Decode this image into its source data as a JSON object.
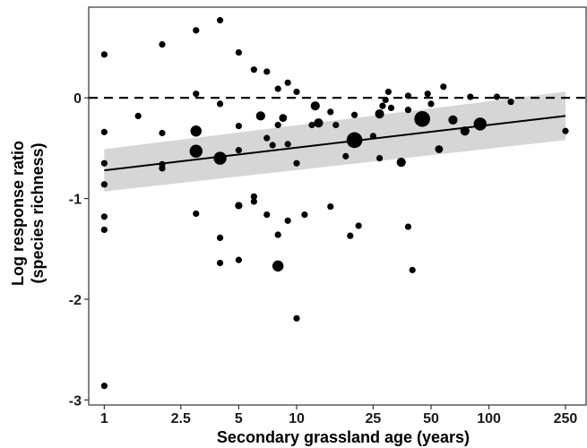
{
  "chart_data": {
    "type": "scatter",
    "title": "",
    "xlabel": "Secondary grassland age (years)",
    "ylabel_lines": [
      "Log response ratio",
      "(species richness)"
    ],
    "x_scale": "log",
    "xlim": [
      0.83,
      320
    ],
    "ylim": [
      -3.05,
      0.9
    ],
    "x_ticks": [
      1,
      2.5,
      5,
      10,
      25,
      50,
      100,
      250
    ],
    "x_tick_labels": [
      "1",
      "2.5",
      "5",
      "10",
      "25",
      "50",
      "100",
      "250"
    ],
    "y_ticks": [
      -3,
      -2,
      -1,
      0
    ],
    "y_tick_labels": [
      "-3",
      "-2",
      "-1",
      "0"
    ],
    "grid": false,
    "reference_line": {
      "y": 0,
      "style": "dashed"
    },
    "regression": {
      "x": [
        1,
        250
      ],
      "y": [
        -0.72,
        -0.18
      ],
      "ci_lower": [
        -0.93,
        -0.42
      ],
      "ci_upper": [
        -0.51,
        0.06
      ]
    },
    "points": [
      {
        "x": 1,
        "y": 0.43,
        "s": 1
      },
      {
        "x": 1,
        "y": -0.34,
        "s": 1
      },
      {
        "x": 1,
        "y": -0.65,
        "s": 1
      },
      {
        "x": 1,
        "y": -0.86,
        "s": 1
      },
      {
        "x": 1,
        "y": -1.18,
        "s": 1
      },
      {
        "x": 1,
        "y": -1.31,
        "s": 1
      },
      {
        "x": 1,
        "y": -2.86,
        "s": 1
      },
      {
        "x": 1.5,
        "y": -0.18,
        "s": 1
      },
      {
        "x": 2,
        "y": 0.53,
        "s": 1
      },
      {
        "x": 2,
        "y": -0.35,
        "s": 1
      },
      {
        "x": 2,
        "y": -0.66,
        "s": 1
      },
      {
        "x": 2,
        "y": -0.7,
        "s": 1
      },
      {
        "x": 3,
        "y": 0.67,
        "s": 1
      },
      {
        "x": 3,
        "y": 0.04,
        "s": 1
      },
      {
        "x": 3,
        "y": -1.15,
        "s": 1
      },
      {
        "x": 3,
        "y": -0.33,
        "s": 3
      },
      {
        "x": 3,
        "y": -0.53,
        "s": 4
      },
      {
        "x": 4,
        "y": 0.77,
        "s": 1
      },
      {
        "x": 4,
        "y": -0.06,
        "s": 1
      },
      {
        "x": 4,
        "y": -0.6,
        "s": 4
      },
      {
        "x": 4,
        "y": -1.39,
        "s": 1
      },
      {
        "x": 4,
        "y": -1.64,
        "s": 1
      },
      {
        "x": 5,
        "y": 0.45,
        "s": 1
      },
      {
        "x": 5,
        "y": -0.28,
        "s": 1
      },
      {
        "x": 5,
        "y": -0.52,
        "s": 1
      },
      {
        "x": 5,
        "y": -1.07,
        "s": 1.3
      },
      {
        "x": 5,
        "y": -1.61,
        "s": 1
      },
      {
        "x": 6,
        "y": 0.28,
        "s": 1
      },
      {
        "x": 6,
        "y": -0.98,
        "s": 1
      },
      {
        "x": 6,
        "y": -1.03,
        "s": 1
      },
      {
        "x": 6.5,
        "y": -0.18,
        "s": 2
      },
      {
        "x": 7,
        "y": 0.26,
        "s": 1
      },
      {
        "x": 7,
        "y": -0.4,
        "s": 1
      },
      {
        "x": 7,
        "y": -1.16,
        "s": 1
      },
      {
        "x": 7.5,
        "y": -0.47,
        "s": 1
      },
      {
        "x": 8,
        "y": 0.09,
        "s": 1
      },
      {
        "x": 8,
        "y": -0.27,
        "s": 1
      },
      {
        "x": 8,
        "y": -1.36,
        "s": 1
      },
      {
        "x": 8,
        "y": -1.67,
        "s": 3
      },
      {
        "x": 8.5,
        "y": -0.2,
        "s": 1.5
      },
      {
        "x": 9,
        "y": 0.15,
        "s": 1
      },
      {
        "x": 9,
        "y": -0.46,
        "s": 1
      },
      {
        "x": 9,
        "y": -1.22,
        "s": 1
      },
      {
        "x": 10,
        "y": 0.06,
        "s": 1
      },
      {
        "x": 10,
        "y": -0.65,
        "s": 1
      },
      {
        "x": 10,
        "y": -2.19,
        "s": 1
      },
      {
        "x": 11,
        "y": -1.16,
        "s": 1
      },
      {
        "x": 12,
        "y": -0.27,
        "s": 1
      },
      {
        "x": 12.5,
        "y": -0.08,
        "s": 2
      },
      {
        "x": 13,
        "y": -0.25,
        "s": 2
      },
      {
        "x": 15,
        "y": -0.14,
        "s": 1
      },
      {
        "x": 15,
        "y": -1.08,
        "s": 1
      },
      {
        "x": 16,
        "y": -0.27,
        "s": 1
      },
      {
        "x": 18,
        "y": -0.58,
        "s": 1
      },
      {
        "x": 19,
        "y": -1.37,
        "s": 1
      },
      {
        "x": 20,
        "y": -0.42,
        "s": 6
      },
      {
        "x": 20,
        "y": -0.17,
        "s": 1
      },
      {
        "x": 21,
        "y": -1.27,
        "s": 1
      },
      {
        "x": 25,
        "y": -0.38,
        "s": 1
      },
      {
        "x": 27,
        "y": -0.16,
        "s": 2
      },
      {
        "x": 27,
        "y": -0.6,
        "s": 1
      },
      {
        "x": 28,
        "y": -0.08,
        "s": 1
      },
      {
        "x": 29,
        "y": -0.02,
        "s": 1
      },
      {
        "x": 30,
        "y": 0.06,
        "s": 1
      },
      {
        "x": 31,
        "y": -0.1,
        "s": 1
      },
      {
        "x": 35,
        "y": -0.64,
        "s": 2
      },
      {
        "x": 38,
        "y": 0.02,
        "s": 1
      },
      {
        "x": 38,
        "y": -0.12,
        "s": 1
      },
      {
        "x": 38,
        "y": -1.28,
        "s": 1
      },
      {
        "x": 40,
        "y": -1.71,
        "s": 1
      },
      {
        "x": 45,
        "y": -0.21,
        "s": 6
      },
      {
        "x": 48,
        "y": 0.04,
        "s": 1
      },
      {
        "x": 50,
        "y": -0.06,
        "s": 1
      },
      {
        "x": 55,
        "y": -0.51,
        "s": 1.5
      },
      {
        "x": 58,
        "y": 0.11,
        "s": 1
      },
      {
        "x": 65,
        "y": -0.22,
        "s": 2
      },
      {
        "x": 75,
        "y": -0.33,
        "s": 2
      },
      {
        "x": 80,
        "y": 0.01,
        "s": 1
      },
      {
        "x": 90,
        "y": -0.26,
        "s": 4
      },
      {
        "x": 110,
        "y": 0.01,
        "s": 1
      },
      {
        "x": 130,
        "y": -0.04,
        "s": 1
      },
      {
        "x": 250,
        "y": -0.33,
        "s": 1
      }
    ]
  },
  "style": {
    "point_color": "#000000",
    "ci_color": "#d6d6d6",
    "line_color": "#000000"
  }
}
